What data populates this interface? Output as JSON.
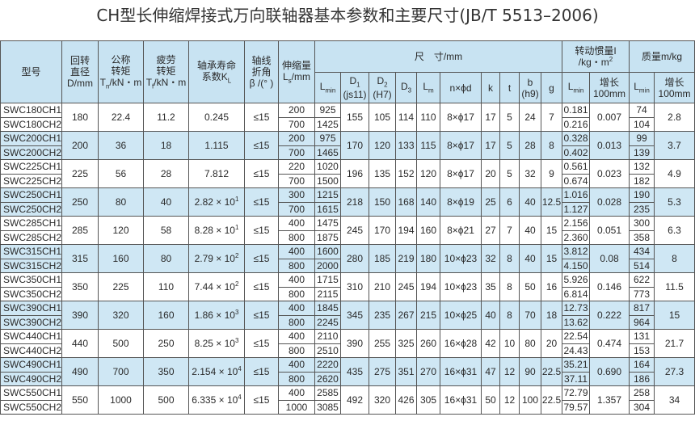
{
  "title": "CH型长伸缩焊接式万向联轴器基本参数和主要尺寸(JB/T 5513–2006)",
  "header": {
    "model": "型号",
    "diameter": [
      "回转",
      "直径",
      "D/mm"
    ],
    "nominal_torque": [
      "公称",
      "转矩",
      "T",
      "n",
      "/kN・m"
    ],
    "fatigue_torque": [
      "疲劳",
      "转矩",
      "T",
      "f",
      "/kN・m"
    ],
    "bearing_life": [
      "轴承寿命",
      "系数K",
      "L"
    ],
    "angle": [
      "轴线",
      "折角",
      "β /(° )"
    ],
    "stretch": [
      "伸缩量",
      "L",
      "s",
      "/mm"
    ],
    "dimensions": "尺　寸/mm",
    "inertia": [
      "转动惯量I",
      "/kg・m",
      "2"
    ],
    "mass": "质量m/kg",
    "sub": {
      "lmin": [
        "L",
        "min"
      ],
      "d1": [
        "D",
        "1",
        "(js11)"
      ],
      "d2": [
        "D",
        "2",
        "(H7)"
      ],
      "d3": [
        "D",
        "3"
      ],
      "lm": [
        "L",
        "m"
      ],
      "nphid": "n×ϕd",
      "k": "k",
      "t": "t",
      "b": [
        "b",
        "(h9)"
      ],
      "g": "g",
      "i_lmin": [
        "L",
        "min"
      ],
      "i_inc": [
        "增长",
        "100mm"
      ],
      "m_lmin": [
        "L",
        "min"
      ],
      "m_inc": [
        "增长",
        "100mm"
      ]
    }
  },
  "rows": [
    {
      "models": [
        "SWC180CH1",
        "SWC180CH2"
      ],
      "D": "180",
      "Tn": "22.4",
      "Tf": "11.2",
      "K": "0.245",
      "Kexp": "",
      "beta": "≤15",
      "Ls": [
        "200",
        "700"
      ],
      "Lmin": [
        "925",
        "1425"
      ],
      "D1": "155",
      "D2": "105",
      "D3": "114",
      "Lm": "110",
      "nd": "8×ϕ17",
      "k": "17",
      "t": "5",
      "b": "24",
      "g": "7",
      "I": [
        "0.181",
        "0.216"
      ],
      "Iinc": "0.007",
      "m": [
        "74",
        "104"
      ],
      "minc": "2.8"
    },
    {
      "models": [
        "SWC200CH1",
        "SWC200CH2"
      ],
      "D": "200",
      "Tn": "36",
      "Tf": "18",
      "K": "1.115",
      "Kexp": "",
      "beta": "≤15",
      "Ls": [
        "200",
        "700"
      ],
      "Lmin": [
        "975",
        "1465"
      ],
      "D1": "170",
      "D2": "120",
      "D3": "133",
      "Lm": "115",
      "nd": "8×ϕ17",
      "k": "17",
      "t": "5",
      "b": "28",
      "g": "8",
      "I": [
        "0.328",
        "0.402"
      ],
      "Iinc": "0.013",
      "m": [
        "99",
        "139"
      ],
      "minc": "3.7"
    },
    {
      "models": [
        "SWC225CH1",
        "SWC225CH2"
      ],
      "D": "225",
      "Tn": "56",
      "Tf": "28",
      "K": "7.812",
      "Kexp": "",
      "beta": "≤15",
      "Ls": [
        "220",
        "700"
      ],
      "Lmin": [
        "1020",
        "1500"
      ],
      "D1": "196",
      "D2": "135",
      "D3": "152",
      "Lm": "120",
      "nd": "8×ϕ17",
      "k": "20",
      "t": "5",
      "b": "32",
      "g": "9",
      "I": [
        "0.561",
        "0.674"
      ],
      "Iinc": "0.023",
      "m": [
        "132",
        "182"
      ],
      "minc": "4.9"
    },
    {
      "models": [
        "SWC250CH1",
        "SWC250CH2"
      ],
      "D": "250",
      "Tn": "80",
      "Tf": "40",
      "K": "2.82 × 10",
      "Kexp": "1",
      "beta": "≤15",
      "Ls": [
        "300",
        "700"
      ],
      "Lmin": [
        "1215",
        "1615"
      ],
      "D1": "218",
      "D2": "150",
      "D3": "168",
      "Lm": "140",
      "nd": "8×ϕ19",
      "k": "25",
      "t": "6",
      "b": "40",
      "g": "12.5",
      "I": [
        "1.016",
        "1.127"
      ],
      "Iinc": "0.028",
      "m": [
        "190",
        "235"
      ],
      "minc": "5.3"
    },
    {
      "models": [
        "SWC285CH1",
        "SWC285CH2"
      ],
      "D": "285",
      "Tn": "120",
      "Tf": "58",
      "K": "8.28 × 10",
      "Kexp": "1",
      "beta": "≤15",
      "Ls": [
        "400",
        "800"
      ],
      "Lmin": [
        "1475",
        "1875"
      ],
      "D1": "245",
      "D2": "170",
      "D3": "194",
      "Lm": "160",
      "nd": "8×ϕ21",
      "k": "27",
      "t": "7",
      "b": "40",
      "g": "15",
      "I": [
        "2.156",
        "2.360"
      ],
      "Iinc": "0.051",
      "m": [
        "300",
        "358"
      ],
      "minc": "6.3"
    },
    {
      "models": [
        "SWC315CH1",
        "SWC315CH2"
      ],
      "D": "315",
      "Tn": "160",
      "Tf": "80",
      "K": "2.79 × 10",
      "Kexp": "2",
      "beta": "≤15",
      "Ls": [
        "400",
        "800"
      ],
      "Lmin": [
        "1600",
        "2000"
      ],
      "D1": "280",
      "D2": "185",
      "D3": "219",
      "Lm": "180",
      "nd": "10×ϕ23",
      "k": "32",
      "t": "8",
      "b": "40",
      "g": "15",
      "I": [
        "3.812",
        "4.150"
      ],
      "Iinc": "0.08",
      "m": [
        "434",
        "514"
      ],
      "minc": "8"
    },
    {
      "models": [
        "SWC350CH1",
        "SWC350CH2"
      ],
      "D": "350",
      "Tn": "225",
      "Tf": "110",
      "K": "7.44 × 10",
      "Kexp": "2",
      "beta": "≤15",
      "Ls": [
        "400",
        "800"
      ],
      "Lmin": [
        "1715",
        "2115"
      ],
      "D1": "310",
      "D2": "210",
      "D3": "245",
      "Lm": "194",
      "nd": "10×ϕ23",
      "k": "35",
      "t": "8",
      "b": "50",
      "g": "16",
      "I": [
        "5.926",
        "6.814"
      ],
      "Iinc": "0.146",
      "m": [
        "622",
        "773"
      ],
      "minc": "11.5"
    },
    {
      "models": [
        "SWC390CH1",
        "SWC390CH2"
      ],
      "D": "390",
      "Tn": "320",
      "Tf": "160",
      "K": "1.86 × 10",
      "Kexp": "3",
      "beta": "≤15",
      "Ls": [
        "400",
        "800"
      ],
      "Lmin": [
        "1845",
        "2245"
      ],
      "D1": "345",
      "D2": "235",
      "D3": "267",
      "Lm": "215",
      "nd": "10×ϕ25",
      "k": "40",
      "t": "8",
      "b": "70",
      "g": "18",
      "I": [
        "12.73",
        "13.62"
      ],
      "Iinc": "0.222",
      "m": [
        "817",
        "964"
      ],
      "minc": "15"
    },
    {
      "models": [
        "SWC440CH1",
        "SWC440CH2"
      ],
      "D": "440",
      "Tn": "500",
      "Tf": "250",
      "K": "8.25 × 10",
      "Kexp": "3",
      "beta": "≤15",
      "Ls": [
        "400",
        "800"
      ],
      "Lmin": [
        "2110",
        "2510"
      ],
      "D1": "390",
      "D2": "255",
      "D3": "325",
      "Lm": "260",
      "nd": "16×ϕ28",
      "k": "42",
      "t": "10",
      "b": "80",
      "g": "20",
      "I": [
        "22.54",
        "24.43"
      ],
      "Iinc": "0.474",
      "m": [
        "131",
        "153"
      ],
      "minc": "21.7"
    },
    {
      "models": [
        "SWC490CH1",
        "SWC490CH2"
      ],
      "D": "490",
      "Tn": "700",
      "Tf": "350",
      "K": "2.154 × 10",
      "Kexp": "4",
      "beta": "≤15",
      "Ls": [
        "400",
        "800"
      ],
      "Lmin": [
        "2220",
        "2620"
      ],
      "D1": "435",
      "D2": "275",
      "D3": "351",
      "Lm": "270",
      "nd": "16×ϕ31",
      "k": "47",
      "t": "12",
      "b": "90",
      "g": "22.5",
      "I": [
        "35.21",
        "37.11"
      ],
      "Iinc": "0.690",
      "m": [
        "164",
        "186"
      ],
      "minc": "27.3"
    },
    {
      "models": [
        "SWC550CH1",
        "SWC550CH2"
      ],
      "D": "550",
      "Tn": "1000",
      "Tf": "500",
      "K": "6.335 × 10",
      "Kexp": "4",
      "beta": "≤15",
      "Ls": [
        "400",
        "1000"
      ],
      "Lmin": [
        "2585",
        "3085"
      ],
      "D1": "492",
      "D2": "320",
      "D3": "426",
      "Lm": "305",
      "nd": "16×ϕ31",
      "k": "50",
      "t": "12",
      "b": "100",
      "g": "22.5",
      "I": [
        "72.79",
        "79.57"
      ],
      "Iinc": "1.357",
      "m": [
        "258",
        "304"
      ],
      "minc": "34"
    }
  ],
  "colors": {
    "header_bg": "#c8e3f2",
    "row_shade": "#cfe7f4",
    "border": "#555555"
  }
}
